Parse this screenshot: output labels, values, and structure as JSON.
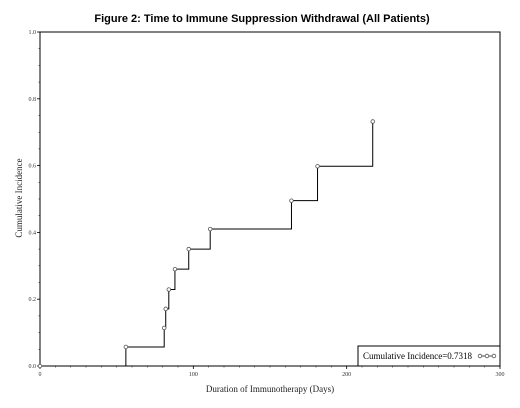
{
  "chart_data": {
    "type": "line",
    "title": "Figure 2: Time to Immune Suppression Withdrawal (All Patients)",
    "xlabel": "Duration of Immunotherapy (Days)",
    "ylabel": "Cumulative Incidence",
    "xlim": [
      0,
      300
    ],
    "ylim": [
      0,
      1.0
    ],
    "x_ticks": [
      "0",
      "100",
      "200",
      "300"
    ],
    "y_ticks": [
      "0.0",
      "0.2",
      "0.4",
      "0.6",
      "0.8",
      "1.0"
    ],
    "grid": false,
    "legend_position": "bottom-right",
    "line_color": "#000000",
    "series": [
      {
        "name": "Cumulative Incidence=0.7318",
        "step": true,
        "x": [
          0,
          56,
          81,
          82,
          84,
          88,
          97,
          111,
          164,
          181,
          217
        ],
        "y": [
          0,
          0.057,
          0.114,
          0.171,
          0.229,
          0.29,
          0.35,
          0.41,
          0.495,
          0.598,
          0.732
        ]
      }
    ]
  }
}
